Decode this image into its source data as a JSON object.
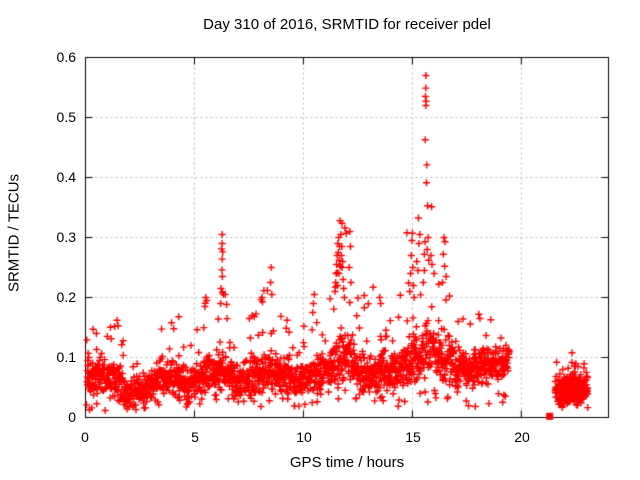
{
  "chart_data": {
    "type": "scatter",
    "title": "Day 310 of 2016, SRMTID for receiver pdel",
    "xlabel": "GPS time / hours",
    "ylabel": "SRMTID / TECUs",
    "xlim": [
      0,
      24
    ],
    "ylim": [
      0,
      0.6
    ],
    "xticks": {
      "values": [
        0,
        5,
        10,
        15,
        20
      ],
      "labels": [
        "0",
        "5",
        "10",
        "15",
        "20"
      ]
    },
    "yticks": {
      "values": [
        0,
        0.1,
        0.2,
        0.3,
        0.4,
        0.5,
        0.6
      ],
      "labels": [
        "0",
        "0.1",
        "0.2",
        "0.3",
        "0.4",
        "0.5",
        "0.6"
      ]
    },
    "grid": {
      "visible": true,
      "style": "dashed",
      "color": "#b9b9b9"
    },
    "axis_color": "#000000",
    "marker": {
      "symbol": "+",
      "color": "#ff0000",
      "size": 7,
      "stroke": 1.4
    },
    "series": [
      {
        "name": "SRMTID",
        "representation": "dense scatter of ~2300 '+' points; band envelope keyframes [hour, low, typical, high] plus explicit extreme points",
        "seed": 310,
        "main_band": {
          "t_start": 0.05,
          "t_end": 19.45,
          "n_points": 2000,
          "envelope": [
            [
              0.0,
              0.03,
              0.065,
              0.16
            ],
            [
              0.5,
              0.035,
              0.07,
              0.13
            ],
            [
              1.0,
              0.03,
              0.065,
              0.17
            ],
            [
              1.5,
              0.025,
              0.06,
              0.15
            ],
            [
              2.0,
              0.012,
              0.04,
              0.11
            ],
            [
              2.5,
              0.015,
              0.045,
              0.12
            ],
            [
              3.0,
              0.025,
              0.055,
              0.13
            ],
            [
              3.5,
              0.03,
              0.065,
              0.15
            ],
            [
              4.0,
              0.03,
              0.065,
              0.17
            ],
            [
              4.5,
              0.03,
              0.06,
              0.14
            ],
            [
              5.0,
              0.025,
              0.055,
              0.15
            ],
            [
              5.5,
              0.03,
              0.07,
              0.2
            ],
            [
              6.0,
              0.03,
              0.07,
              0.18
            ],
            [
              6.3,
              0.035,
              0.08,
              0.3
            ],
            [
              6.6,
              0.03,
              0.07,
              0.2
            ],
            [
              7.0,
              0.025,
              0.06,
              0.15
            ],
            [
              7.5,
              0.03,
              0.065,
              0.17
            ],
            [
              8.0,
              0.035,
              0.07,
              0.2
            ],
            [
              8.5,
              0.035,
              0.075,
              0.25
            ],
            [
              9.0,
              0.03,
              0.07,
              0.17
            ],
            [
              9.5,
              0.025,
              0.06,
              0.14
            ],
            [
              10.0,
              0.03,
              0.06,
              0.16
            ],
            [
              10.5,
              0.035,
              0.07,
              0.2
            ],
            [
              11.0,
              0.035,
              0.07,
              0.18
            ],
            [
              11.5,
              0.04,
              0.09,
              0.3
            ],
            [
              11.8,
              0.045,
              0.1,
              0.33
            ],
            [
              12.1,
              0.04,
              0.09,
              0.3
            ],
            [
              12.5,
              0.035,
              0.08,
              0.22
            ],
            [
              13.0,
              0.03,
              0.07,
              0.2
            ],
            [
              13.5,
              0.035,
              0.075,
              0.22
            ],
            [
              14.0,
              0.03,
              0.07,
              0.18
            ],
            [
              14.5,
              0.04,
              0.08,
              0.22
            ],
            [
              15.0,
              0.05,
              0.09,
              0.3
            ],
            [
              15.4,
              0.055,
              0.1,
              0.35
            ],
            [
              15.7,
              0.06,
              0.12,
              0.44
            ],
            [
              16.0,
              0.05,
              0.11,
              0.3
            ],
            [
              16.5,
              0.05,
              0.1,
              0.3
            ],
            [
              17.0,
              0.04,
              0.08,
              0.18
            ],
            [
              17.5,
              0.04,
              0.08,
              0.16
            ],
            [
              18.0,
              0.045,
              0.085,
              0.17
            ],
            [
              18.5,
              0.05,
              0.09,
              0.16
            ],
            [
              19.0,
              0.06,
              0.09,
              0.14
            ],
            [
              19.45,
              0.07,
              0.1,
              0.13
            ]
          ]
        },
        "second_band": {
          "t_start": 21.55,
          "t_end": 23.05,
          "n_points": 270,
          "lo": 0.015,
          "typ": 0.045,
          "hi": 0.115
        },
        "explicit_points": [
          [
            15.62,
            0.57
          ],
          [
            15.62,
            0.549
          ],
          [
            15.6,
            0.535
          ],
          [
            15.63,
            0.527
          ],
          [
            15.62,
            0.52
          ],
          [
            15.59,
            0.463
          ],
          [
            15.66,
            0.421
          ],
          [
            15.7,
            0.353
          ],
          [
            15.72,
            0.3
          ],
          [
            15.68,
            0.28
          ],
          [
            15.75,
            0.262
          ],
          [
            15.85,
            0.27
          ],
          [
            15.9,
            0.255
          ],
          [
            16.0,
            0.24
          ],
          [
            15.55,
            0.245
          ],
          [
            15.5,
            0.225
          ],
          [
            6.27,
            0.305
          ],
          [
            6.27,
            0.29
          ],
          [
            6.24,
            0.281
          ],
          [
            6.3,
            0.276
          ],
          [
            6.27,
            0.264
          ],
          [
            6.26,
            0.246
          ],
          [
            6.28,
            0.235
          ],
          [
            6.22,
            0.215
          ],
          [
            6.33,
            0.205
          ],
          [
            6.2,
            0.19
          ],
          [
            11.68,
            0.328
          ],
          [
            11.72,
            0.305
          ],
          [
            11.66,
            0.285
          ],
          [
            11.62,
            0.3
          ],
          [
            11.58,
            0.29
          ],
          [
            11.55,
            0.27
          ],
          [
            11.52,
            0.255
          ],
          [
            11.5,
            0.24
          ],
          [
            11.48,
            0.225
          ],
          [
            11.45,
            0.21
          ],
          [
            11.6,
            0.275
          ],
          [
            11.63,
            0.24
          ],
          [
            11.7,
            0.252
          ],
          [
            11.74,
            0.27
          ],
          [
            11.77,
            0.25
          ],
          [
            11.8,
            0.26
          ],
          [
            11.82,
            0.23
          ],
          [
            11.85,
            0.215
          ],
          [
            11.88,
            0.2
          ],
          [
            11.56,
            0.22
          ],
          [
            11.64,
            0.262
          ],
          [
            11.76,
            0.285
          ],
          [
            12.13,
            0.31
          ],
          [
            12.16,
            0.285
          ],
          [
            12.1,
            0.25
          ],
          [
            12.18,
            0.225
          ],
          [
            14.75,
            0.308
          ],
          [
            15.0,
            0.307
          ],
          [
            15.34,
            0.305
          ],
          [
            15.3,
            0.29
          ],
          [
            14.88,
            0.21
          ],
          [
            14.92,
            0.24
          ],
          [
            14.95,
            0.27
          ],
          [
            15.02,
            0.25
          ],
          [
            15.05,
            0.22
          ],
          [
            15.08,
            0.2
          ],
          [
            14.98,
            0.295
          ],
          [
            15.2,
            0.26
          ],
          [
            15.26,
            0.245
          ],
          [
            16.45,
            0.3
          ],
          [
            16.5,
            0.293
          ],
          [
            16.42,
            0.272
          ],
          [
            16.48,
            0.252
          ],
          [
            16.55,
            0.235
          ],
          [
            16.38,
            0.225
          ],
          [
            8.52,
            0.25
          ],
          [
            8.49,
            0.225
          ],
          [
            8.55,
            0.205
          ],
          [
            8.1,
            0.2
          ],
          [
            8.12,
            0.193
          ],
          [
            5.52,
            0.2
          ],
          [
            5.56,
            0.195
          ],
          [
            5.48,
            0.185
          ],
          [
            10.5,
            0.205
          ],
          [
            10.46,
            0.19
          ],
          [
            13.2,
            0.217
          ],
          [
            13.5,
            0.2
          ],
          [
            13.55,
            0.19
          ],
          [
            7.52,
            0.165
          ],
          [
            9.25,
            0.162
          ],
          [
            10.02,
            0.152
          ],
          [
            0.35,
            0.147
          ],
          [
            0.5,
            0.14
          ],
          [
            1.0,
            0.135
          ],
          [
            1.45,
            0.162
          ],
          [
            1.5,
            0.153
          ],
          [
            3.95,
            0.158
          ],
          [
            4.05,
            0.148
          ],
          [
            4.28,
            0.168
          ],
          [
            0.12,
            0.107
          ],
          [
            0.15,
            0.1
          ],
          [
            0.1,
            0.095
          ],
          [
            17.1,
            0.16
          ],
          [
            18.05,
            0.172
          ],
          [
            18.1,
            0.165
          ],
          [
            18.6,
            0.163
          ],
          [
            22.33,
            0.108
          ],
          [
            21.62,
            0.092
          ],
          [
            22.5,
            0.09
          ],
          [
            22.6,
            0.085
          ],
          [
            22.15,
            0.082
          ],
          [
            21.9,
            0.08
          ]
        ],
        "zero_epoch_square": [
          21.3,
          0.002
        ]
      }
    ]
  }
}
